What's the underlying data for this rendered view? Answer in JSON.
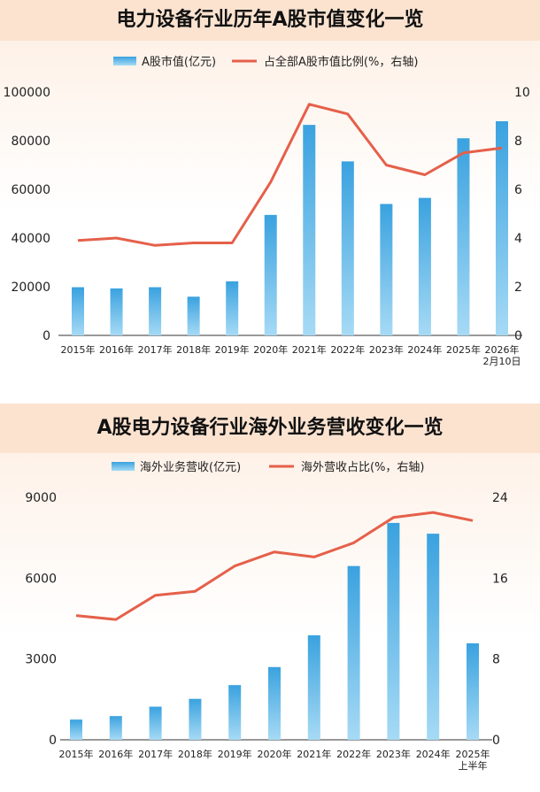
{
  "chart_data": [
    {
      "type": "bar",
      "title": "电力设备行业历年A股市值变化一览",
      "categories": [
        "2015年",
        "2016年",
        "2017年",
        "2018年",
        "2019年",
        "2020年",
        "2021年",
        "2022年",
        "2023年",
        "2024年",
        "2025年",
        "2026年\n2月10日"
      ],
      "series": [
        {
          "name": "A股市值(亿元)",
          "type": "bar",
          "axis": "left",
          "values": [
            19800,
            19300,
            19800,
            15900,
            22200,
            49500,
            86500,
            71500,
            54000,
            56500,
            81000,
            88000
          ]
        },
        {
          "name": "占全部A股市值比例(%，右轴)",
          "type": "line",
          "axis": "right",
          "values": [
            3.9,
            4.0,
            3.7,
            3.8,
            3.8,
            6.3,
            9.5,
            9.1,
            7.0,
            6.6,
            7.5,
            7.7
          ]
        }
      ],
      "ylim": [
        0,
        100000
      ],
      "yticks": [
        "0",
        "20000",
        "40000",
        "60000",
        "80000",
        "100000"
      ],
      "y2lim": [
        0,
        10
      ],
      "y2ticks": [
        "0",
        "2",
        "4",
        "6",
        "8",
        "10"
      ],
      "legend": "top-center",
      "colors": {
        "bar_top": "#3aa2df",
        "bar_bottom": "#a6daf5",
        "line": "#e5604a"
      }
    },
    {
      "type": "bar",
      "title": "A股电力设备行业海外业务营收变化一览",
      "categories": [
        "2015年",
        "2016年",
        "2017年",
        "2018年",
        "2019年",
        "2020年",
        "2021年",
        "2022年",
        "2023年",
        "2024年",
        "2025年\n上半年"
      ],
      "series": [
        {
          "name": "海外业务营收(亿元)",
          "type": "bar",
          "axis": "left",
          "values": [
            750,
            880,
            1230,
            1520,
            2030,
            2700,
            3880,
            6450,
            8050,
            7650,
            3580
          ]
        },
        {
          "name": "海外营收占比(%，右轴)",
          "type": "line",
          "axis": "right",
          "values": [
            12.3,
            11.9,
            14.3,
            14.7,
            17.2,
            18.6,
            18.1,
            19.5,
            22.0,
            22.5,
            21.7
          ]
        }
      ],
      "ylim": [
        0,
        9000
      ],
      "yticks": [
        "0",
        "3000",
        "6000",
        "9000"
      ],
      "y2lim": [
        0,
        24
      ],
      "y2ticks": [
        "0",
        "8",
        "16",
        "24"
      ],
      "legend": "top-center",
      "colors": {
        "bar_top": "#3aa2df",
        "bar_bottom": "#a6daf5",
        "line": "#e5604a"
      }
    }
  ]
}
